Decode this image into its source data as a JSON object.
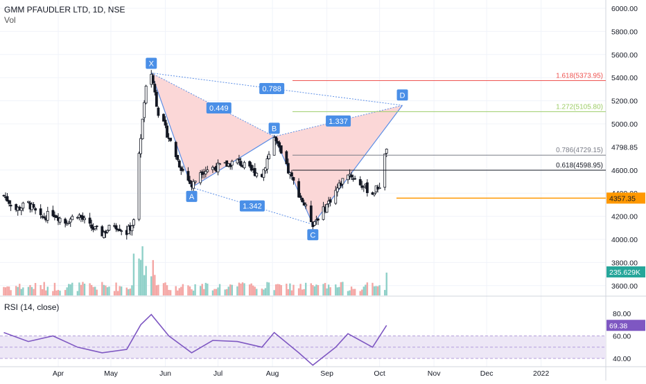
{
  "header": {
    "symbol_line": "GMM PFAUDLER LTD, 1D, NSE",
    "volume_label": "Vol",
    "rsi_label": "RSI (14, close)"
  },
  "colors": {
    "up": "#26a69a",
    "down": "#ef5350",
    "vol_up": "#8fd0c8",
    "vol_down": "#f4a6a4",
    "pattern_fill": "#fbd7d7",
    "pattern_line": "#5b8ee6",
    "point_badge": "#4a8fe7",
    "rsi_line": "#7e57c2",
    "rsi_band": "#ede7f6",
    "fib_1618": "#ef5350",
    "fib_1272": "#9ccc65",
    "fib_0786": "#787b86",
    "fib_0618": "#131722",
    "support": "#ff9800"
  },
  "chart_data": {
    "type": "candlestick",
    "x_ticks": [
      "Apr",
      "May",
      "Jun",
      "Jul",
      "Aug",
      "Sep",
      "Oct",
      "Nov",
      "Dec",
      "2022"
    ],
    "price_axis_labels": [
      "6000.00",
      "5800.00",
      "5600.00",
      "5400.00",
      "5200.00",
      "5000.00",
      "4798.85",
      "4600.00",
      "4400.00",
      "4200.00",
      "4000.00",
      "3800.00",
      "3600.00"
    ],
    "last_price_label": "4357.35",
    "volume_label": "235.629K",
    "rsi_axis_labels": [
      "80.00",
      "60.00",
      "40.00"
    ],
    "rsi_value_label": "69.38",
    "rsi_band": [
      40,
      60
    ],
    "pattern_points": [
      {
        "label": "X",
        "date": "2021-05-24",
        "price": 5440
      },
      {
        "label": "A",
        "date": "2021-06-16",
        "price": 4450
      },
      {
        "label": "B",
        "date": "2021-08-02",
        "price": 4890
      },
      {
        "label": "C",
        "date": "2021-08-24",
        "price": 4130
      },
      {
        "label": "D",
        "date": "2021-10-14",
        "price": 5160
      }
    ],
    "ratios": [
      {
        "label": "0.449",
        "from": "X",
        "to": "B"
      },
      {
        "label": "0.788",
        "from": "X",
        "to": "D"
      },
      {
        "label": "1.337",
        "from": "B",
        "to": "D"
      },
      {
        "label": "1.342",
        "from": "A",
        "to": "C"
      }
    ],
    "fib_levels": [
      {
        "label": "1.618(5373.95)",
        "price": 5373.95,
        "color_key": "fib_1618"
      },
      {
        "label": "1.272(5105.80)",
        "price": 5105.8,
        "color_key": "fib_1272"
      },
      {
        "label": "0.786(4729.15)",
        "price": 4729.15,
        "color_key": "fib_0786"
      },
      {
        "label": "0.618(4598.95)",
        "price": 4598.95,
        "color_key": "fib_0618"
      }
    ],
    "support_level": 4357.35,
    "price_path": [
      [
        "2021-03-01",
        4380
      ],
      [
        "2021-03-08",
        4260
      ],
      [
        "2021-03-15",
        4310
      ],
      [
        "2021-03-22",
        4180
      ],
      [
        "2021-03-29",
        4230
      ],
      [
        "2021-04-05",
        4150
      ],
      [
        "2021-04-12",
        4220
      ],
      [
        "2021-04-19",
        4110
      ],
      [
        "2021-04-26",
        4050
      ],
      [
        "2021-05-03",
        4130
      ],
      [
        "2021-05-10",
        4060
      ],
      [
        "2021-05-14",
        4150
      ],
      [
        "2021-05-18",
        4900
      ],
      [
        "2021-05-21",
        5300
      ],
      [
        "2021-05-24",
        5440
      ],
      [
        "2021-05-28",
        5100
      ],
      [
        "2021-06-03",
        4880
      ],
      [
        "2021-06-09",
        4650
      ],
      [
        "2021-06-16",
        4460
      ],
      [
        "2021-06-21",
        4590
      ],
      [
        "2021-06-28",
        4620
      ],
      [
        "2021-07-05",
        4640
      ],
      [
        "2021-07-12",
        4680
      ],
      [
        "2021-07-19",
        4600
      ],
      [
        "2021-07-26",
        4560
      ],
      [
        "2021-08-02",
        4880
      ],
      [
        "2021-08-09",
        4620
      ],
      [
        "2021-08-16",
        4400
      ],
      [
        "2021-08-24",
        4140
      ],
      [
        "2021-08-30",
        4250
      ],
      [
        "2021-09-06",
        4420
      ],
      [
        "2021-09-13",
        4580
      ],
      [
        "2021-09-20",
        4480
      ],
      [
        "2021-09-27",
        4400
      ],
      [
        "2021-10-01",
        4470
      ],
      [
        "2021-10-05",
        4798.85
      ]
    ],
    "rsi_path": [
      [
        "2021-03-01",
        63
      ],
      [
        "2021-03-15",
        55
      ],
      [
        "2021-03-29",
        60
      ],
      [
        "2021-04-12",
        50
      ],
      [
        "2021-04-26",
        45
      ],
      [
        "2021-05-10",
        48
      ],
      [
        "2021-05-18",
        70
      ],
      [
        "2021-05-24",
        79
      ],
      [
        "2021-06-03",
        60
      ],
      [
        "2021-06-16",
        45
      ],
      [
        "2021-06-28",
        56
      ],
      [
        "2021-07-12",
        55
      ],
      [
        "2021-07-26",
        50
      ],
      [
        "2021-08-02",
        63
      ],
      [
        "2021-08-16",
        45
      ],
      [
        "2021-08-24",
        34
      ],
      [
        "2021-09-06",
        50
      ],
      [
        "2021-09-13",
        62
      ],
      [
        "2021-09-27",
        50
      ],
      [
        "2021-10-05",
        69.38
      ]
    ]
  }
}
